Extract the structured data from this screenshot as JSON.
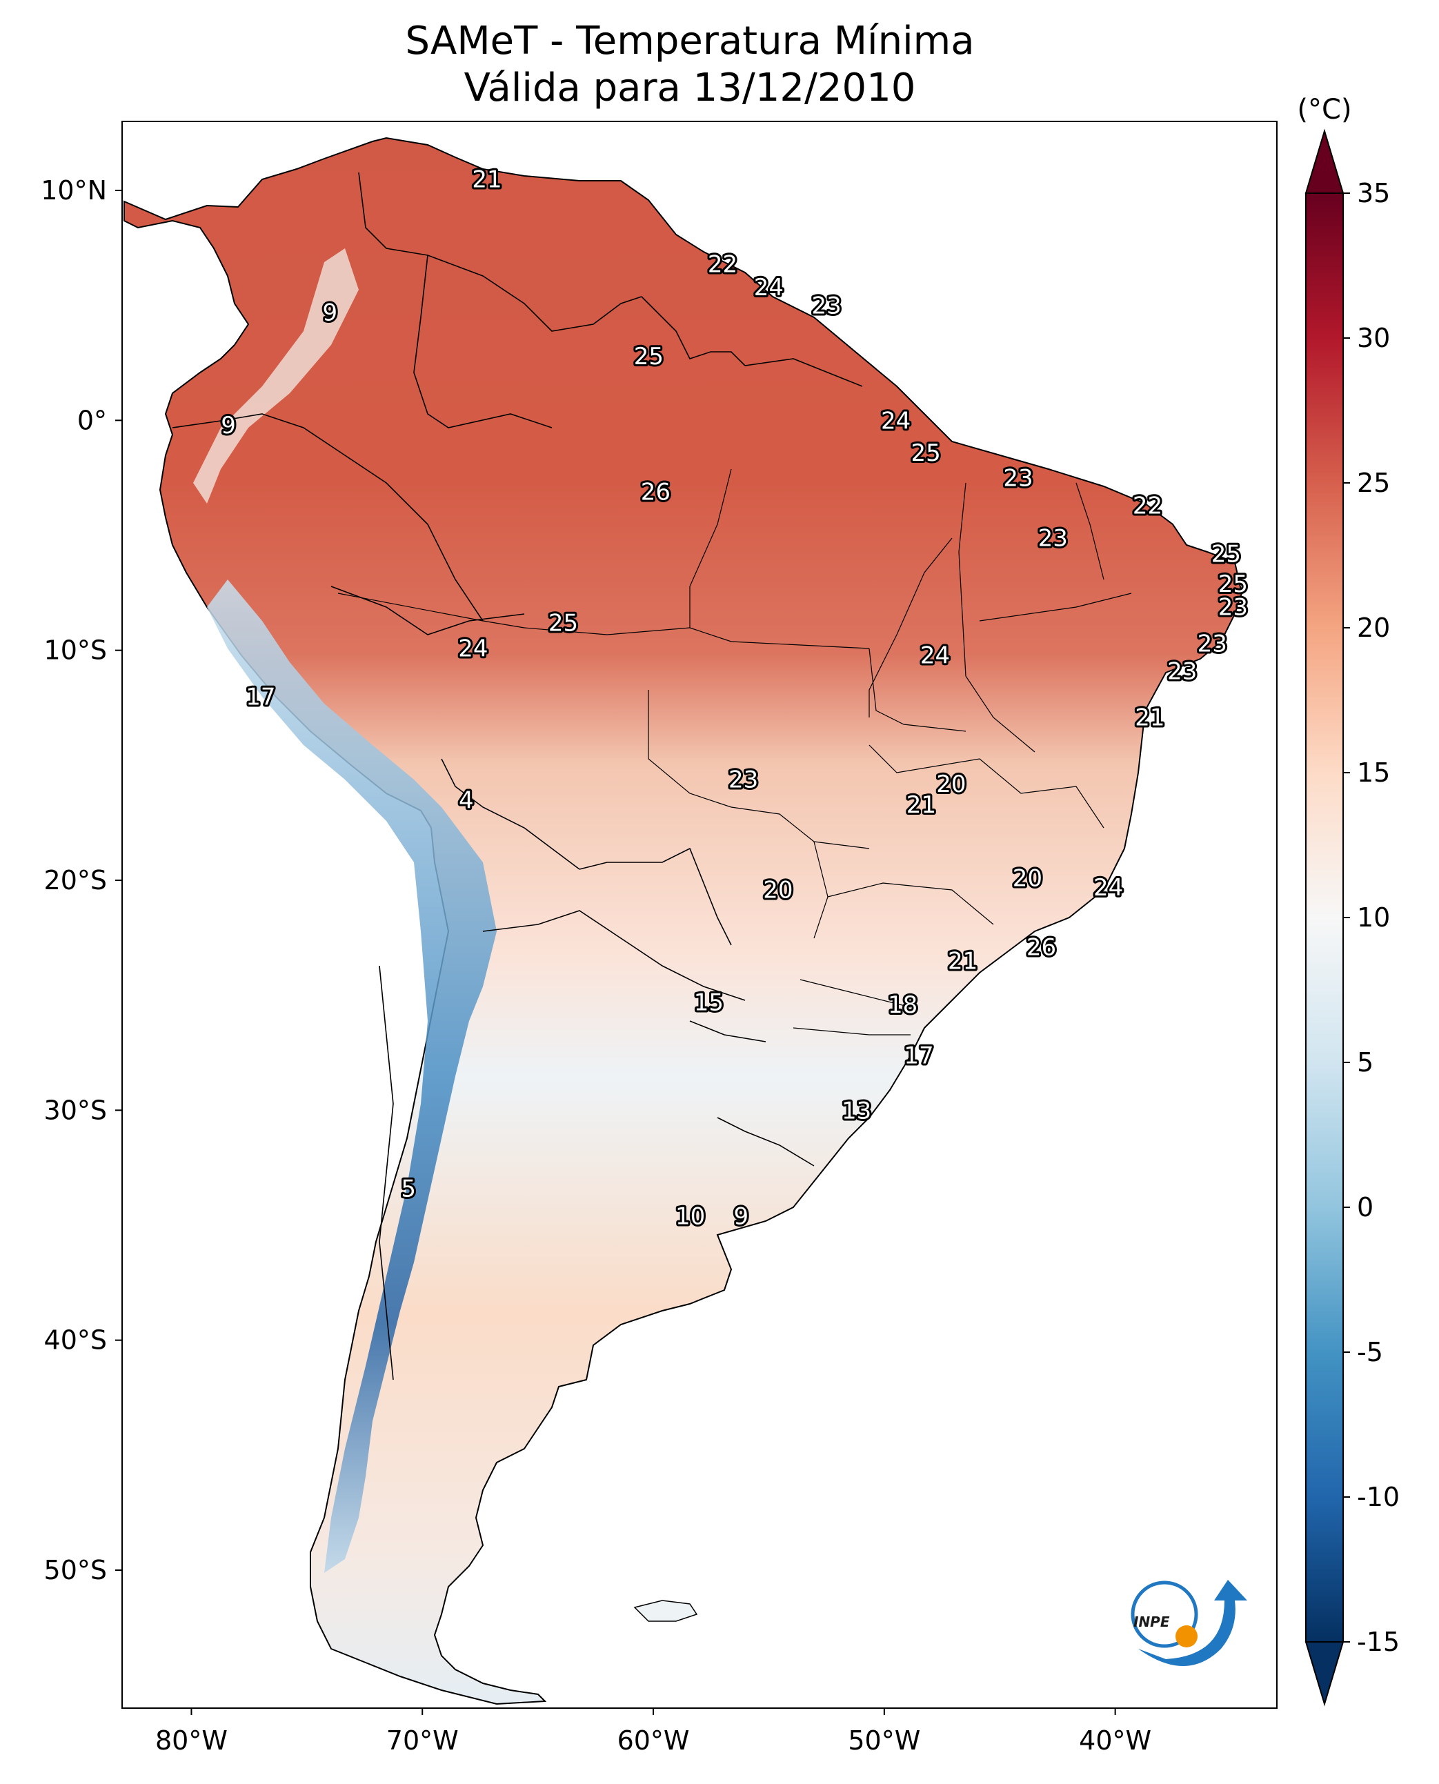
{
  "title_line1": "SAMeT - Temperatura Mínima",
  "title_line2": "Válida para 13/12/2010",
  "map": {
    "lon_range": [
      -83,
      -33
    ],
    "lat_range": [
      -56,
      13
    ],
    "lon_ticks": [
      {
        "value": -80,
        "label": "80°W"
      },
      {
        "value": -70,
        "label": "70°W"
      },
      {
        "value": -60,
        "label": "60°W"
      },
      {
        "value": -50,
        "label": "50°W"
      },
      {
        "value": -40,
        "label": "40°W"
      }
    ],
    "lat_ticks": [
      {
        "value": 10,
        "label": "10°N"
      },
      {
        "value": 0,
        "label": "0°"
      },
      {
        "value": -10,
        "label": "10°S"
      },
      {
        "value": -20,
        "label": "20°S"
      },
      {
        "value": -30,
        "label": "30°S"
      },
      {
        "value": -40,
        "label": "40°S"
      },
      {
        "value": -50,
        "label": "50°S"
      }
    ],
    "station_labels": [
      {
        "lon": -67.2,
        "lat": 10.5,
        "value": "21"
      },
      {
        "lon": -74.0,
        "lat": 4.7,
        "value": "9"
      },
      {
        "lon": -78.4,
        "lat": -0.2,
        "value": "9"
      },
      {
        "lon": -57.0,
        "lat": 6.8,
        "value": "22"
      },
      {
        "lon": -55.0,
        "lat": 5.8,
        "value": "24"
      },
      {
        "lon": -52.5,
        "lat": 5.0,
        "value": "23"
      },
      {
        "lon": -60.2,
        "lat": 2.8,
        "value": "25"
      },
      {
        "lon": -49.5,
        "lat": 0.0,
        "value": "24"
      },
      {
        "lon": -48.2,
        "lat": -1.4,
        "value": "25"
      },
      {
        "lon": -59.9,
        "lat": -3.1,
        "value": "26"
      },
      {
        "lon": -44.2,
        "lat": -2.5,
        "value": "23"
      },
      {
        "lon": -38.6,
        "lat": -3.7,
        "value": "22"
      },
      {
        "lon": -42.7,
        "lat": -5.1,
        "value": "23"
      },
      {
        "lon": -35.2,
        "lat": -5.8,
        "value": "25"
      },
      {
        "lon": -34.9,
        "lat": -7.1,
        "value": "25"
      },
      {
        "lon": -34.9,
        "lat": -8.1,
        "value": "23"
      },
      {
        "lon": -35.8,
        "lat": -9.7,
        "value": "23"
      },
      {
        "lon": -37.1,
        "lat": -10.9,
        "value": "23"
      },
      {
        "lon": -63.9,
        "lat": -8.8,
        "value": "25"
      },
      {
        "lon": -67.8,
        "lat": -9.9,
        "value": "24"
      },
      {
        "lon": -47.8,
        "lat": -10.2,
        "value": "24"
      },
      {
        "lon": -77.0,
        "lat": -12.0,
        "value": "17"
      },
      {
        "lon": -38.5,
        "lat": -12.9,
        "value": "21"
      },
      {
        "lon": -56.1,
        "lat": -15.6,
        "value": "23"
      },
      {
        "lon": -47.1,
        "lat": -15.8,
        "value": "20"
      },
      {
        "lon": -48.4,
        "lat": -16.7,
        "value": "21"
      },
      {
        "lon": -68.1,
        "lat": -16.5,
        "value": "4"
      },
      {
        "lon": -54.6,
        "lat": -20.4,
        "value": "20"
      },
      {
        "lon": -43.8,
        "lat": -19.9,
        "value": "20"
      },
      {
        "lon": -40.3,
        "lat": -20.3,
        "value": "24"
      },
      {
        "lon": -43.2,
        "lat": -22.9,
        "value": "26"
      },
      {
        "lon": -46.6,
        "lat": -23.5,
        "value": "21"
      },
      {
        "lon": -57.6,
        "lat": -25.3,
        "value": "15"
      },
      {
        "lon": -49.2,
        "lat": -25.4,
        "value": "18"
      },
      {
        "lon": -48.5,
        "lat": -27.6,
        "value": "17"
      },
      {
        "lon": -51.2,
        "lat": -30.0,
        "value": "13"
      },
      {
        "lon": -70.6,
        "lat": -33.4,
        "value": "5"
      },
      {
        "lon": -58.4,
        "lat": -34.6,
        "value": "10"
      },
      {
        "lon": -56.2,
        "lat": -34.6,
        "value": "9"
      }
    ]
  },
  "colorbar": {
    "unit": "(°C)",
    "min": -15,
    "max": 35,
    "ticks": [
      "35",
      "30",
      "25",
      "20",
      "15",
      "10",
      "5",
      "0",
      "-5",
      "-10",
      "-15"
    ],
    "colors": [
      "#053061",
      "#2166ac",
      "#4393c3",
      "#92c5de",
      "#d1e5f0",
      "#f7f7f7",
      "#fddbc7",
      "#f4a582",
      "#d6604d",
      "#b2182b",
      "#67001f"
    ]
  },
  "logo": {
    "text": "INPE",
    "blue": "#1f78c1",
    "orange": "#f39200"
  }
}
